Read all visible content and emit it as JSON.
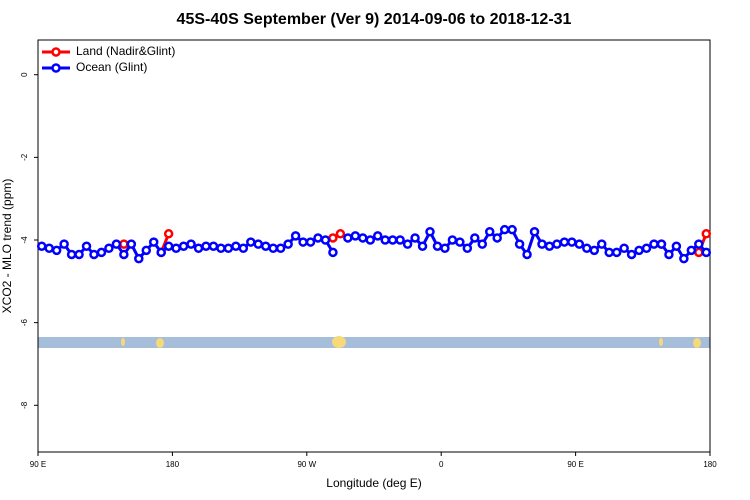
{
  "chart_data": {
    "type": "line",
    "title": "45S-40S September (Ver 9)   2014-09-06 to 2018-12-31",
    "xlabel": "Longitude (deg E)",
    "ylabel": "XCO2 - MLO trend (ppm)",
    "xlim": [
      90,
      540
    ],
    "ylim": [
      -9.13,
      0.84
    ],
    "xticks": [
      {
        "value": 90,
        "label": "90 E"
      },
      180,
      {
        "value": 270,
        "label": "90 W"
      },
      {
        "value": 360,
        "label": "0"
      },
      {
        "value": 450,
        "label": "90 E"
      },
      {
        "value": 540,
        "label": "180"
      }
    ],
    "yticks": [
      0,
      -2,
      -4,
      -6,
      -8
    ],
    "legend": "top-left",
    "series": [
      {
        "name": "Land (Nadir&Glint)",
        "color": "#ff0000",
        "x": [
          147.5,
          152.5,
          172.5,
          177.5,
          182.5,
          287.5,
          292.5,
          297.5,
          507.5,
          512.5,
          532.5,
          537.5
        ],
        "values": [
          -4.1,
          null,
          -4.3,
          -3.85,
          null,
          -3.95,
          -3.85,
          null,
          -4.1,
          null,
          -4.3,
          -3.85
        ]
      },
      {
        "name": "Ocean (Glint)",
        "color": "#0000ff",
        "x": [
          92.5,
          97.5,
          102.5,
          107.5,
          112.5,
          117.5,
          122.5,
          127.5,
          132.5,
          137.5,
          142.5,
          147.5,
          152.5,
          157.5,
          162.5,
          167.5,
          172.5,
          177.5,
          182.5,
          187.5,
          192.5,
          197.5,
          202.5,
          207.5,
          212.5,
          217.5,
          222.5,
          227.5,
          232.5,
          237.5,
          242.5,
          247.5,
          252.5,
          257.5,
          262.5,
          267.5,
          272.5,
          277.5,
          282.5,
          287.5,
          292.5,
          297.5,
          302.5,
          307.5,
          312.5,
          317.5,
          322.5,
          327.5,
          332.5,
          337.5,
          342.5,
          347.5,
          352.5,
          357.5,
          362.5,
          367.5,
          372.5,
          377.5,
          382.5,
          387.5,
          392.5,
          397.5,
          402.5,
          407.5,
          412.5,
          417.5,
          422.5,
          427.5,
          432.5,
          437.5,
          442.5,
          447.5,
          452.5,
          457.5,
          462.5,
          467.5,
          472.5,
          477.5,
          482.5,
          487.5,
          492.5,
          497.5,
          502.5,
          507.5,
          512.5,
          517.5,
          522.5,
          527.5,
          532.5,
          537.5
        ],
        "values": [
          -4.15,
          -4.2,
          -4.25,
          -4.1,
          -4.35,
          -4.35,
          -4.15,
          -4.35,
          -4.3,
          -4.2,
          -4.1,
          -4.35,
          -4.1,
          -4.45,
          -4.25,
          -4.05,
          -4.3,
          -4.15,
          -4.2,
          -4.15,
          -4.1,
          -4.2,
          -4.15,
          -4.15,
          -4.2,
          -4.2,
          -4.15,
          -4.2,
          -4.05,
          -4.1,
          -4.15,
          -4.2,
          -4.2,
          -4.1,
          -3.9,
          -4.05,
          -4.05,
          -3.95,
          -4.0,
          -4.3,
          null,
          -3.95,
          -3.9,
          -3.95,
          -4.0,
          -3.9,
          -4.0,
          -4.0,
          -4.0,
          -4.1,
          -3.95,
          -4.15,
          -3.8,
          -4.15,
          -4.2,
          -4.0,
          -4.05,
          -4.2,
          -3.95,
          -4.1,
          -3.8,
          -3.95,
          -3.75,
          -3.75,
          -4.1,
          -4.35,
          -3.8,
          -4.1,
          -4.15,
          -4.1,
          -4.05,
          -4.05,
          -4.1,
          -4.2,
          -4.25,
          -4.1,
          -4.3,
          -4.3,
          -4.2,
          -4.35,
          -4.25,
          -4.2,
          -4.1,
          -4.1,
          -4.35,
          -4.15,
          -4.45,
          -4.25,
          -4.1,
          -4.3
        ]
      }
    ]
  }
}
